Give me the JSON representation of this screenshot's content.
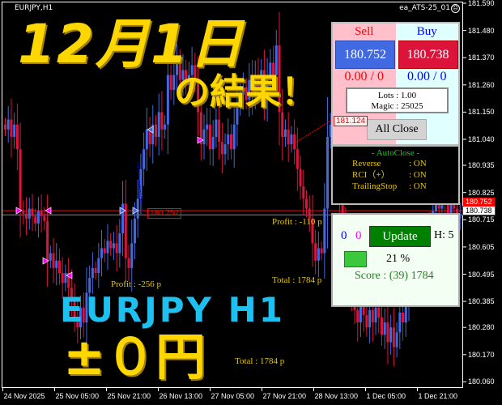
{
  "window": {
    "symbol": "EURJPY,H1",
    "expert": "ea_ATS-25_01",
    "expert_status_icon": "sad-face-icon"
  },
  "colors": {
    "bull": "#4169e1",
    "bear": "#dc143c",
    "background": "#000000",
    "overlay_yellow": "#ffd700",
    "overlay_cyan": "#1ec0f0"
  },
  "overlay": {
    "date_title": "12月1日",
    "result_title": "の結果！",
    "pair_title": "EURJPY H1",
    "result_value": "±０円"
  },
  "price_axis": {
    "ticks": [
      181.59,
      181.48,
      181.37,
      181.26,
      181.15,
      181.04,
      180.935,
      180.825,
      180.715,
      180.605,
      180.495,
      180.385,
      180.28,
      180.17,
      180.06
    ],
    "current_ask_tag": "180.752",
    "current_bid_tag": "180.738"
  },
  "time_axis": {
    "labels": [
      "24 Nov 2025",
      "25 Nov 05:00",
      "25 Nov 21:00",
      "26 Nov 13:00",
      "27 Nov 05:00",
      "27 Nov 21:00",
      "28 Nov 13:00",
      "1 Dec 05:00",
      "1 Dec 21:00"
    ]
  },
  "chart_data": {
    "type": "candlestick",
    "timeframe": "H1",
    "ylim": [
      180.06,
      181.59
    ],
    "closes": [
      181.08,
      181.12,
      181.05,
      181.1,
      181.0,
      180.75,
      180.74,
      180.72,
      180.76,
      180.73,
      180.7,
      180.75,
      180.73,
      180.71,
      180.55,
      180.58,
      180.52,
      180.55,
      180.5,
      180.46,
      180.5,
      180.44,
      180.4,
      180.32,
      180.28,
      180.36,
      180.3,
      180.42,
      180.48,
      180.52,
      180.5,
      180.56,
      180.6,
      180.58,
      180.63,
      180.6,
      180.62,
      180.58,
      180.66,
      180.78,
      180.56,
      180.52,
      180.62,
      180.72,
      180.8,
      180.92,
      181.0,
      181.08,
      181.02,
      181.1,
      181.05,
      181.15,
      181.08,
      181.1,
      181.3,
      181.24,
      181.3,
      181.35,
      181.28,
      181.32,
      181.26,
      181.3,
      181.34,
      181.28,
      181.15,
      181.02,
      181.08,
      181.1,
      181.0,
      181.05,
      181.12,
      181.03,
      180.98,
      181.02,
      181.06,
      181.0,
      181.1,
      181.18,
      181.22,
      181.25,
      181.2,
      181.28,
      181.22,
      181.3,
      181.25,
      181.32,
      181.2,
      181.28,
      181.35,
      181.3,
      181.42,
      181.15,
      181.05,
      181.08,
      181.02,
      181.06,
      181.0,
      180.92,
      180.85,
      180.8,
      180.76,
      180.72,
      180.62,
      180.55,
      180.6,
      180.58,
      180.76,
      181.05,
      181.1,
      181.0,
      180.9,
      180.8,
      180.7,
      180.6,
      180.5,
      180.4,
      180.35,
      180.3,
      180.38,
      180.33,
      180.28,
      180.35,
      180.3,
      180.36,
      180.32,
      180.25,
      180.3,
      180.22,
      180.28,
      180.2,
      180.26,
      180.34,
      180.3,
      180.38,
      180.45,
      180.5,
      180.55,
      180.6,
      180.58,
      180.65,
      180.7,
      180.68,
      180.75,
      180.8,
      180.76,
      180.82,
      180.78,
      180.74,
      180.8,
      180.76,
      180.72,
      180.738
    ]
  },
  "chart_labels": {
    "entry_tag": "180.752",
    "exit_tag": "181.124",
    "trade1_profit": "Profit : -256 p",
    "trade1_total": "Total : 1784 p",
    "trade2_profit": "Profit : -110 p",
    "trade2_total": "Total : 1784 p"
  },
  "panel": {
    "sell_label": "Sell",
    "buy_label": "Buy",
    "sell_price": "180.752",
    "buy_price": "180.738",
    "sell_pl": "0.00 / 0",
    "buy_pl": "0.00 / 0",
    "lots": "Lots   : 1.00",
    "magic": "Magic : 25025",
    "all_close": "All Close",
    "autoclose_title": "- AutoClose -",
    "autoclose": [
      {
        "key": "Reverse",
        "value": ": ON"
      },
      {
        "key": "RCI（+）",
        "value": ": ON"
      },
      {
        "key": "TrailingStop",
        "value": ": ON"
      }
    ],
    "count_buy": "0",
    "count_sell": "0",
    "update": "Update",
    "h": "H: 5",
    "progress_percent": "21 %",
    "progress_color": "#3cc83c",
    "score": "Score : (39) 1784"
  }
}
